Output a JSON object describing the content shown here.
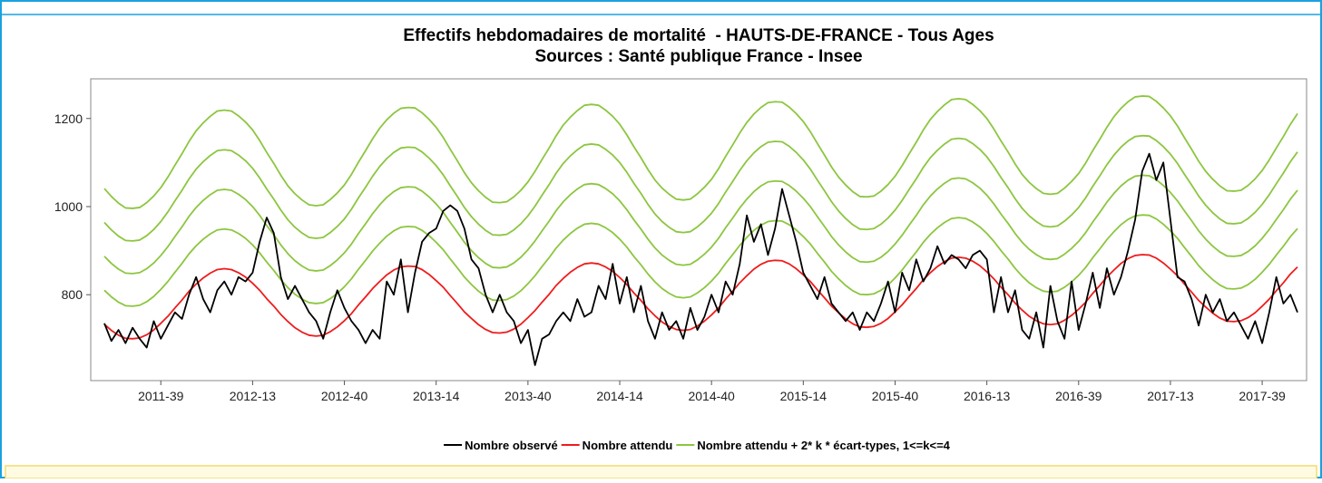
{
  "chart_data": {
    "type": "line",
    "title": "Effectifs hebdomadaires de mortalité  - HAUTS-DE-FRANCE - Tous Ages",
    "subtitle": "Sources : Santé publique France - Insee",
    "categories": [
      null,
      null,
      null,
      null,
      null,
      null,
      null,
      null,
      "2011-39",
      null,
      null,
      null,
      null,
      null,
      null,
      null,
      null,
      null,
      null,
      null,
      null,
      "2012-13",
      null,
      null,
      null,
      null,
      null,
      null,
      null,
      null,
      null,
      null,
      null,
      null,
      "2012-40",
      null,
      null,
      null,
      null,
      null,
      null,
      null,
      null,
      null,
      null,
      null,
      null,
      "2013-14",
      null,
      null,
      null,
      null,
      null,
      null,
      null,
      null,
      null,
      null,
      null,
      null,
      "2013-40",
      null,
      null,
      null,
      null,
      null,
      null,
      null,
      null,
      null,
      null,
      null,
      null,
      "2014-14",
      null,
      null,
      null,
      null,
      null,
      null,
      null,
      null,
      null,
      null,
      null,
      null,
      "2014-40",
      null,
      null,
      null,
      null,
      null,
      null,
      null,
      null,
      null,
      null,
      null,
      null,
      "2015-14",
      null,
      null,
      null,
      null,
      null,
      null,
      null,
      null,
      null,
      null,
      null,
      null,
      "2015-40",
      null,
      null,
      null,
      null,
      null,
      null,
      null,
      null,
      null,
      null,
      null,
      null,
      "2016-13",
      null,
      null,
      null,
      null,
      null,
      null,
      null,
      null,
      null,
      null,
      null,
      null,
      "2016-39",
      null,
      null,
      null,
      null,
      null,
      null,
      null,
      null,
      null,
      null,
      null,
      null,
      "2017-13",
      null,
      null,
      null,
      null,
      null,
      null,
      null,
      null,
      null,
      null,
      null,
      null,
      "2017-39",
      null,
      null,
      null,
      null,
      null
    ],
    "ylim": [
      605,
      1290
    ],
    "yticks": [
      800,
      1000,
      1200
    ],
    "legend": "bottom",
    "series": [
      {
        "name": "Nombre observé",
        "color": "#000000",
        "values": [
          735,
          695,
          720,
          690,
          725,
          700,
          680,
          740,
          700,
          730,
          760,
          745,
          800,
          840,
          790,
          760,
          810,
          830,
          800,
          840,
          830,
          850,
          920,
          975,
          940,
          840,
          790,
          820,
          790,
          760,
          740,
          700,
          760,
          810,
          770,
          740,
          720,
          690,
          720,
          700,
          830,
          800,
          880,
          760,
          850,
          920,
          940,
          950,
          990,
          1003,
          990,
          950,
          880,
          860,
          800,
          760,
          800,
          760,
          740,
          690,
          720,
          640,
          700,
          710,
          740,
          760,
          740,
          790,
          750,
          760,
          820,
          790,
          870,
          780,
          840,
          760,
          820,
          740,
          700,
          760,
          720,
          740,
          700,
          770,
          720,
          750,
          800,
          760,
          830,
          800,
          870,
          980,
          920,
          960,
          890,
          950,
          1040,
          980,
          920,
          850,
          820,
          790,
          840,
          780,
          760,
          740,
          760,
          720,
          760,
          740,
          780,
          830,
          760,
          850,
          810,
          880,
          830,
          860,
          910,
          870,
          890,
          880,
          860,
          890,
          900,
          880,
          760,
          840,
          760,
          810,
          720,
          700,
          760,
          680,
          820,
          740,
          700,
          830,
          720,
          780,
          850,
          770,
          860,
          800,
          840,
          900,
          970,
          1080,
          1120,
          1060,
          1100,
          970,
          840,
          830,
          790,
          730,
          800,
          760,
          790,
          740,
          760,
          730,
          700,
          740,
          690,
          760,
          840,
          780,
          800,
          760
        ]
      },
      {
        "name": "Nombre attendu",
        "color": "#ee1c1c",
        "values": [
          733,
          719,
          708,
          701,
          700,
          702,
          709,
          720,
          735,
          751,
          770,
          788,
          808,
          824,
          838,
          849,
          857,
          859,
          857,
          850,
          840,
          826,
          810,
          791,
          774,
          755,
          739,
          725,
          715,
          708,
          706,
          708,
          716,
          727,
          741,
          757,
          777,
          795,
          814,
          830,
          845,
          856,
          863,
          865,
          864,
          857,
          846,
          832,
          817,
          798,
          780,
          761,
          746,
          732,
          721,
          714,
          713,
          715,
          722,
          733,
          748,
          764,
          783,
          801,
          821,
          837,
          851,
          862,
          870,
          872,
          870,
          863,
          853,
          839,
          823,
          804,
          787,
          768,
          752,
          738,
          728,
          721,
          719,
          721,
          729,
          740,
          754,
          770,
          790,
          808,
          827,
          843,
          858,
          869,
          876,
          878,
          877,
          870,
          859,
          845,
          830,
          811,
          793,
          774,
          759,
          745,
          734,
          727,
          726,
          728,
          735,
          746,
          761,
          777,
          796,
          814,
          834,
          850,
          864,
          875,
          883,
          885,
          883,
          876,
          866,
          852,
          836,
          817,
          800,
          781,
          765,
          751,
          741,
          734,
          732,
          734,
          742,
          753,
          767,
          783,
          803,
          821,
          840,
          856,
          871,
          882,
          889,
          891,
          890,
          883,
          872,
          858,
          843,
          824,
          806,
          787,
          772,
          758,
          747,
          740,
          739,
          741,
          748,
          759,
          774,
          790,
          809,
          827,
          847,
          863
        ]
      },
      {
        "name": "Nombre attendu + 2* k * écart-types, 1<=k<=4",
        "color": "#8cc63f",
        "values": [
          810,
          795,
          783,
          775,
          774,
          776,
          784,
          796,
          812,
          830,
          851,
          871,
          893,
          911,
          926,
          938,
          947,
          949,
          947,
          939,
          928,
          913,
          895,
          874,
          855,
          834,
          816,
          801,
          790,
          782,
          780,
          782,
          791,
          803,
          818,
          836,
          858,
          878,
          899,
          917,
          933,
          945,
          953,
          955,
          954,
          946,
          934,
          919,
          902,
          881,
          861,
          840,
          823,
          808,
          796,
          788,
          787,
          789,
          797,
          809,
          825,
          843,
          864,
          884,
          906,
          924,
          939,
          951,
          960,
          962,
          960,
          952,
          941,
          926,
          908,
          887,
          868,
          847,
          829,
          814,
          803,
          795,
          793,
          795,
          804,
          816,
          831,
          849,
          871,
          891,
          912,
          930,
          946,
          958,
          966,
          968,
          967,
          959,
          947,
          932,
          915,
          894,
          874,
          853,
          836,
          821,
          809,
          801,
          800,
          802,
          810,
          822,
          838,
          856,
          877,
          897,
          919,
          937,
          952,
          964,
          973,
          975,
          973,
          965,
          954,
          939,
          921,
          900,
          881,
          860,
          842,
          827,
          816,
          808,
          806,
          808,
          817,
          829,
          844,
          862,
          884,
          904,
          925,
          943,
          959,
          971,
          979,
          981,
          980,
          972,
          960,
          945,
          928,
          907,
          887,
          866,
          849,
          834,
          822,
          814,
          813,
          815,
          823,
          835,
          851,
          869,
          890,
          910,
          932,
          950
        ]
      },
      {
        "color": "#8cc63f",
        "values": [
          887,
          871,
          858,
          849,
          848,
          850,
          859,
          872,
          889,
          909,
          932,
          954,
          978,
          998,
          1014,
          1027,
          1037,
          1039,
          1037,
          1028,
          1016,
          1000,
          980,
          957,
          936,
          913,
          893,
          877,
          865,
          856,
          854,
          856,
          866,
          879,
          895,
          915,
          939,
          961,
          984,
          1004,
          1021,
          1034,
          1043,
          1045,
          1044,
          1035,
          1022,
          1006,
          987,
          964,
          942,
          919,
          900,
          884,
          871,
          862,
          861,
          863,
          872,
          885,
          902,
          922,
          945,
          967,
          991,
          1011,
          1027,
          1040,
          1050,
          1052,
          1050,
          1041,
          1029,
          1013,
          993,
          970,
          949,
          926,
          906,
          890,
          878,
          869,
          867,
          869,
          879,
          892,
          908,
          928,
          952,
          974,
          997,
          1017,
          1034,
          1047,
          1056,
          1058,
          1057,
          1048,
          1035,
          1019,
          1000,
          977,
          955,
          932,
          913,
          897,
          884,
          875,
          874,
          876,
          885,
          898,
          915,
          935,
          958,
          980,
          1004,
          1024,
          1040,
          1053,
          1063,
          1065,
          1063,
          1054,
          1042,
          1026,
          1006,
          983,
          962,
          939,
          919,
          903,
          891,
          882,
          880,
          882,
          892,
          905,
          921,
          941,
          965,
          987,
          1010,
          1030,
          1047,
          1060,
          1069,
          1071,
          1070,
          1061,
          1048,
          1032,
          1013,
          990,
          968,
          945,
          926,
          910,
          897,
          888,
          887,
          889,
          898,
          911,
          928,
          948,
          971,
          993,
          1017,
          1037
        ]
      },
      {
        "color": "#8cc63f",
        "values": [
          964,
          947,
          933,
          923,
          922,
          924,
          934,
          948,
          966,
          988,
          1013,
          1037,
          1063,
          1085,
          1102,
          1116,
          1127,
          1129,
          1127,
          1117,
          1104,
          1087,
          1065,
          1040,
          1017,
          992,
          970,
          953,
          940,
          930,
          928,
          930,
          941,
          955,
          972,
          994,
          1020,
          1044,
          1069,
          1091,
          1109,
          1123,
          1133,
          1135,
          1134,
          1124,
          1110,
          1093,
          1072,
          1047,
          1023,
          998,
          977,
          960,
          946,
          936,
          935,
          937,
          947,
          961,
          979,
          1001,
          1026,
          1050,
          1076,
          1098,
          1115,
          1129,
          1140,
          1142,
          1140,
          1130,
          1117,
          1100,
          1078,
          1053,
          1030,
          1005,
          983,
          966,
          953,
          943,
          941,
          943,
          954,
          968,
          985,
          1007,
          1033,
          1057,
          1082,
          1104,
          1122,
          1136,
          1146,
          1148,
          1147,
          1137,
          1123,
          1106,
          1085,
          1060,
          1036,
          1011,
          990,
          973,
          959,
          949,
          948,
          950,
          960,
          974,
          992,
          1014,
          1039,
          1063,
          1089,
          1111,
          1128,
          1142,
          1153,
          1155,
          1153,
          1143,
          1130,
          1113,
          1091,
          1066,
          1043,
          1018,
          996,
          979,
          966,
          956,
          954,
          956,
          967,
          981,
          998,
          1020,
          1046,
          1070,
          1095,
          1117,
          1135,
          1149,
          1159,
          1161,
          1160,
          1150,
          1136,
          1119,
          1098,
          1073,
          1049,
          1024,
          1003,
          986,
          972,
          962,
          961,
          963,
          973,
          987,
          1005,
          1027,
          1052,
          1076,
          1102,
          1124
        ]
      },
      {
        "color": "#8cc63f",
        "values": [
          1041,
          1023,
          1008,
          997,
          996,
          998,
          1009,
          1024,
          1043,
          1067,
          1094,
          1120,
          1148,
          1172,
          1190,
          1205,
          1217,
          1219,
          1217,
          1206,
          1192,
          1174,
          1150,
          1123,
          1098,
          1071,
          1047,
          1029,
          1015,
          1004,
          1002,
          1004,
          1016,
          1031,
          1049,
          1073,
          1101,
          1127,
          1154,
          1178,
          1197,
          1212,
          1223,
          1225,
          1224,
          1213,
          1198,
          1180,
          1157,
          1130,
          1104,
          1077,
          1054,
          1036,
          1021,
          1010,
          1009,
          1011,
          1022,
          1037,
          1056,
          1080,
          1107,
          1133,
          1161,
          1185,
          1203,
          1218,
          1230,
          1232,
          1230,
          1219,
          1205,
          1187,
          1163,
          1136,
          1111,
          1084,
          1060,
          1042,
          1028,
          1017,
          1015,
          1017,
          1029,
          1044,
          1062,
          1086,
          1114,
          1140,
          1167,
          1191,
          1210,
          1225,
          1236,
          1238,
          1237,
          1226,
          1211,
          1193,
          1170,
          1143,
          1117,
          1090,
          1067,
          1049,
          1034,
          1023,
          1022,
          1024,
          1035,
          1050,
          1069,
          1093,
          1120,
          1146,
          1174,
          1198,
          1216,
          1231,
          1243,
          1245,
          1243,
          1232,
          1218,
          1200,
          1176,
          1149,
          1124,
          1097,
          1073,
          1055,
          1041,
          1030,
          1028,
          1030,
          1042,
          1057,
          1075,
          1099,
          1127,
          1153,
          1180,
          1204,
          1223,
          1238,
          1249,
          1251,
          1250,
          1239,
          1224,
          1206,
          1183,
          1156,
          1130,
          1103,
          1080,
          1062,
          1047,
          1036,
          1035,
          1037,
          1048,
          1063,
          1082,
          1106,
          1133,
          1159,
          1187,
          1211
        ]
      }
    ]
  }
}
